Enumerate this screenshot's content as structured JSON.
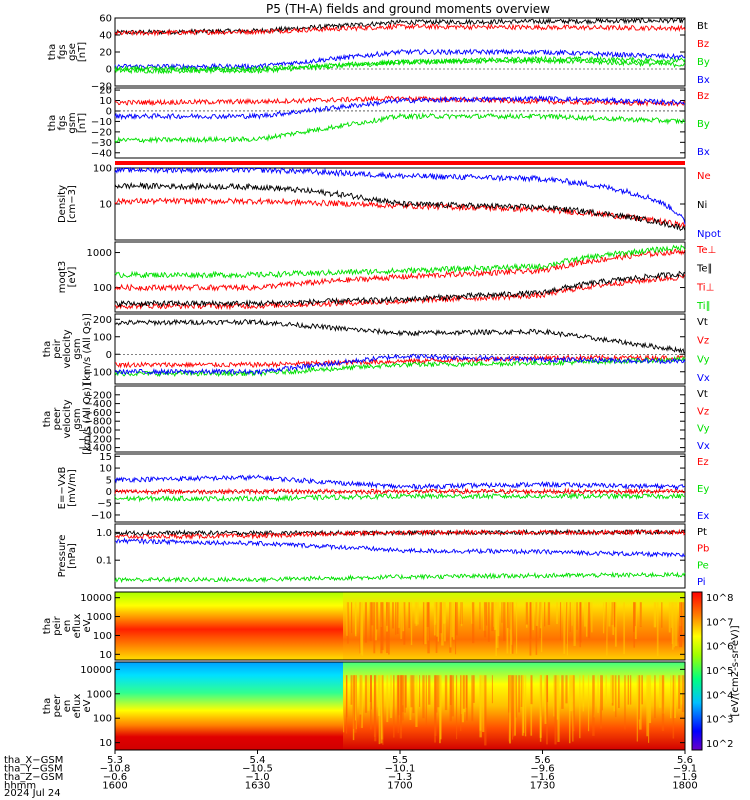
{
  "title": "P5 (TH-A) fields and ground moments overview",
  "colors": {
    "black": "#000000",
    "red": "#ff0000",
    "green": "#00e000",
    "blue": "#0000ff"
  },
  "panels": [
    {
      "id": "fgs_gse",
      "ylabel": [
        "tha",
        "fgs",
        "gse",
        "[nT]"
      ],
      "yscale": "linear",
      "ylim": [
        -20,
        60
      ],
      "yticks": [
        {
          "v": 60,
          "t": "60"
        },
        {
          "v": 40,
          "t": "40"
        },
        {
          "v": 20,
          "t": "20"
        },
        {
          "v": 0,
          "t": "0"
        },
        {
          "v": -20,
          "t": "−20"
        }
      ],
      "legend": [
        {
          "t": "Bt",
          "c": "black"
        },
        {
          "t": "Bz",
          "c": "red"
        },
        {
          "t": "By",
          "c": "green"
        },
        {
          "t": "Bx",
          "c": "blue"
        }
      ]
    },
    {
      "id": "fgs_gsm",
      "ylabel": [
        "tha",
        "fgs",
        "gsm",
        "[nT]"
      ],
      "yscale": "linear",
      "ylim": [
        -45,
        22
      ],
      "yticks": [
        {
          "v": 20,
          "t": "20"
        },
        {
          "v": 10,
          "t": "10"
        },
        {
          "v": 0,
          "t": "0"
        },
        {
          "v": -10,
          "t": "−10"
        },
        {
          "v": -20,
          "t": "−20"
        },
        {
          "v": -30,
          "t": "−30"
        },
        {
          "v": -40,
          "t": "−40"
        }
      ],
      "legend": [
        {
          "t": "Bz",
          "c": "red"
        },
        {
          "t": "By",
          "c": "green"
        },
        {
          "t": "Bx",
          "c": "blue"
        }
      ]
    },
    {
      "id": "density",
      "ylabel": [
        "Density",
        "[cm−3]"
      ],
      "yscale": "log",
      "ylim": [
        1,
        100
      ],
      "yticks": [
        {
          "v": 100,
          "t": "100"
        },
        {
          "v": 10,
          "t": "10"
        }
      ],
      "legend": [
        {
          "t": "Ne",
          "c": "red"
        },
        {
          "t": "Ni",
          "c": "black"
        },
        {
          "t": "Npot",
          "c": "blue"
        }
      ]
    },
    {
      "id": "temp",
      "ylabel": [
        "moqt3",
        "[eV]"
      ],
      "yscale": "log",
      "ylim": [
        20,
        2000
      ],
      "yticks": [
        {
          "v": 1000,
          "t": "1000"
        },
        {
          "v": 100,
          "t": "100"
        }
      ],
      "legend": [
        {
          "t": "Te⊥",
          "c": "red"
        },
        {
          "t": "Te∥",
          "c": "black"
        },
        {
          "t": "Ti⊥",
          "c": "red"
        },
        {
          "t": "Ti∥",
          "c": "green"
        }
      ]
    },
    {
      "id": "peir_vel",
      "ylabel": [
        "tha",
        "peir",
        "velocity",
        "gsm",
        "[km/s (All Qs)]"
      ],
      "yscale": "linear",
      "ylim": [
        -170,
        230
      ],
      "yticks": [
        {
          "v": 200,
          "t": "200"
        },
        {
          "v": 100,
          "t": "100"
        },
        {
          "v": 0,
          "t": "0"
        },
        {
          "v": -100,
          "t": "−100"
        }
      ],
      "legend": [
        {
          "t": "Vt",
          "c": "black"
        },
        {
          "t": "Vz",
          "c": "red"
        },
        {
          "t": "Vy",
          "c": "green"
        },
        {
          "t": "Vx",
          "c": "blue"
        }
      ]
    },
    {
      "id": "peer_vel",
      "ylabel": [
        "tha",
        "peer",
        "velocity",
        "gsm",
        "[km/s (All Qs)]"
      ],
      "yscale": "linear",
      "ylim": [
        -1500,
        0
      ],
      "yticks": [
        {
          "v": -200,
          "t": "−200"
        },
        {
          "v": -400,
          "t": "−400"
        },
        {
          "v": -600,
          "t": "−600"
        },
        {
          "v": -800,
          "t": "−800"
        },
        {
          "v": -1000,
          "t": "−1000"
        },
        {
          "v": -1200,
          "t": "−1200"
        },
        {
          "v": -1400,
          "t": "−1400"
        }
      ],
      "legend": [
        {
          "t": "Vt",
          "c": "black"
        },
        {
          "t": "Vz",
          "c": "red"
        },
        {
          "t": "Vy",
          "c": "green"
        },
        {
          "t": "Vx",
          "c": "blue"
        }
      ]
    },
    {
      "id": "efield",
      "ylabel": [
        "E=−VxB",
        "[mV/m]"
      ],
      "yscale": "linear",
      "ylim": [
        -13,
        16
      ],
      "yticks": [
        {
          "v": 15,
          "t": "15"
        },
        {
          "v": 10,
          "t": "10"
        },
        {
          "v": 5,
          "t": "5"
        },
        {
          "v": 0,
          "t": "0"
        },
        {
          "v": -5,
          "t": "−5"
        },
        {
          "v": -10,
          "t": "−10"
        }
      ],
      "legend": [
        {
          "t": "Ez",
          "c": "red"
        },
        {
          "t": "Ey",
          "c": "green"
        },
        {
          "t": "Ex",
          "c": "blue"
        }
      ]
    },
    {
      "id": "pressure",
      "ylabel": [
        "Pressure",
        "[nPa]"
      ],
      "yscale": "log",
      "ylim": [
        0.01,
        2
      ],
      "yticks": [
        {
          "v": 1,
          "t": "1.0"
        },
        {
          "v": 0.1,
          "t": "0.1"
        }
      ],
      "legend": [
        {
          "t": "Pt",
          "c": "black"
        },
        {
          "t": "Pb",
          "c": "red"
        },
        {
          "t": "Pe",
          "c": "green"
        },
        {
          "t": "Pi",
          "c": "blue"
        }
      ]
    },
    {
      "id": "peir_spec",
      "ylabel": [
        "tha",
        "peir",
        "en",
        "eflux",
        "eV"
      ],
      "yscale": "log",
      "ylim": [
        5,
        20000
      ],
      "yticks": [
        {
          "v": 10000,
          "t": "10000"
        },
        {
          "v": 1000,
          "t": "1000"
        },
        {
          "v": 100,
          "t": "100"
        },
        {
          "v": 10,
          "t": "10"
        }
      ],
      "legend": []
    },
    {
      "id": "peer_spec",
      "ylabel": [
        "tha",
        "peer",
        "en",
        "eflux",
        "eV"
      ],
      "yscale": "log",
      "ylim": [
        5,
        20000
      ],
      "yticks": [
        {
          "v": 10000,
          "t": "10000"
        },
        {
          "v": 1000,
          "t": "1000"
        },
        {
          "v": 100,
          "t": "100"
        },
        {
          "v": 10,
          "t": "10"
        }
      ],
      "legend": []
    }
  ],
  "colorbar": {
    "label": "[eV/(cm2-s-sr-eV)]",
    "ticks": [
      "10^8",
      "10^7",
      "10^6",
      "10^5",
      "10^4",
      "10^3",
      "10^2"
    ]
  },
  "xaxis": {
    "rows": [
      {
        "name": "tha_X−GSM",
        "values": [
          "5.3",
          "5.4",
          "5.5",
          "5.6",
          "5.6"
        ]
      },
      {
        "name": "tha_Y−GSM",
        "values": [
          "−10.8",
          "−10.5",
          "−10.1",
          "−9.6",
          "−9.1"
        ]
      },
      {
        "name": "tha_Z−GSM",
        "values": [
          "−0.6",
          "−1.0",
          "−1.3",
          "−1.6",
          "−1.9"
        ]
      },
      {
        "name": "hhmm",
        "values": [
          "1600",
          "1630",
          "1700",
          "1730",
          "1800"
        ]
      }
    ],
    "date": "2024 Jul 24"
  },
  "chart_data": {
    "type": "line",
    "title": "P5 (TH-A) fields and ground moments overview",
    "x": [
      "1600",
      "1630",
      "1700",
      "1730",
      "1800"
    ],
    "xlabel": "hhmm",
    "series": [
      {
        "panel": "fgs_gse",
        "name": "Bt",
        "values": [
          43,
          45,
          55,
          56,
          57
        ]
      },
      {
        "panel": "fgs_gse",
        "name": "Bz",
        "values": [
          42,
          44,
          50,
          49,
          48
        ]
      },
      {
        "panel": "fgs_gse",
        "name": "By",
        "values": [
          -2,
          -2,
          8,
          12,
          10
        ]
      },
      {
        "panel": "fgs_gse",
        "name": "Bx",
        "values": [
          3,
          3,
          20,
          20,
          14
        ]
      },
      {
        "panel": "fgs_gse",
        "name": "By_2",
        "values": [
          0,
          0,
          8,
          10,
          5
        ]
      },
      {
        "panel": "fgs_gsm",
        "name": "Bz",
        "values": [
          8,
          9,
          12,
          9,
          7
        ]
      },
      {
        "panel": "fgs_gsm",
        "name": "By",
        "values": [
          -28,
          -27,
          -5,
          -5,
          -10
        ]
      },
      {
        "panel": "fgs_gsm",
        "name": "Bx",
        "values": [
          -5,
          -5,
          10,
          12,
          8
        ]
      },
      {
        "panel": "density",
        "name": "Ne",
        "values": [
          12,
          12,
          9,
          7,
          2.5
        ]
      },
      {
        "panel": "density",
        "name": "Ni",
        "values": [
          32,
          30,
          10,
          8,
          2
        ]
      },
      {
        "panel": "density",
        "name": "Npot",
        "values": [
          90,
          90,
          60,
          50,
          3
        ]
      },
      {
        "panel": "temp",
        "name": "Te⊥",
        "values": [
          30,
          30,
          40,
          60,
          200
        ]
      },
      {
        "panel": "temp",
        "name": "Te∥",
        "values": [
          35,
          35,
          45,
          70,
          250
        ]
      },
      {
        "panel": "temp",
        "name": "Ti⊥",
        "values": [
          100,
          100,
          200,
          300,
          1100
        ]
      },
      {
        "panel": "temp",
        "name": "Ti∥",
        "values": [
          230,
          230,
          300,
          400,
          1400
        ]
      },
      {
        "panel": "peir_vel",
        "name": "Vt",
        "values": [
          180,
          185,
          120,
          130,
          20
        ]
      },
      {
        "panel": "peir_vel",
        "name": "Vz",
        "values": [
          -60,
          -60,
          -40,
          -20,
          -20
        ]
      },
      {
        "panel": "peir_vel",
        "name": "Vy",
        "values": [
          -110,
          -110,
          -60,
          -50,
          -30
        ]
      },
      {
        "panel": "peir_vel",
        "name": "Vx",
        "values": [
          -100,
          -100,
          -10,
          -30,
          -40
        ]
      },
      {
        "panel": "efield",
        "name": "Ez",
        "values": [
          0,
          0,
          0,
          0,
          0
        ]
      },
      {
        "panel": "efield",
        "name": "Ey",
        "values": [
          -3,
          -3,
          -2,
          -2,
          -2
        ]
      },
      {
        "panel": "efield",
        "name": "Ex",
        "values": [
          5,
          6,
          2,
          3,
          2
        ]
      },
      {
        "panel": "pressure",
        "name": "Pt",
        "values": [
          0.95,
          0.95,
          0.95,
          1.0,
          1.05
        ]
      },
      {
        "panel": "pressure",
        "name": "Pb",
        "values": [
          0.7,
          0.75,
          1.0,
          1.0,
          1.0
        ]
      },
      {
        "panel": "pressure",
        "name": "Pe",
        "values": [
          0.02,
          0.02,
          0.025,
          0.028,
          0.03
        ]
      },
      {
        "panel": "pressure",
        "name": "Pi",
        "values": [
          0.5,
          0.4,
          0.22,
          0.2,
          0.15
        ]
      }
    ]
  }
}
